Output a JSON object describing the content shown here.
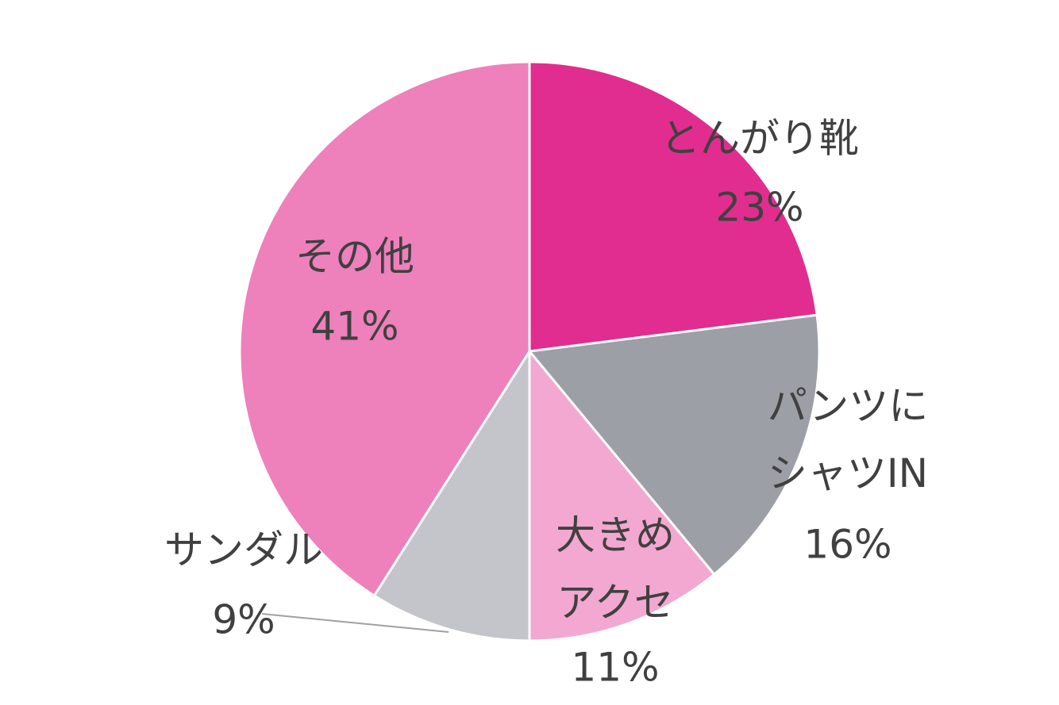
{
  "chart_data": {
    "type": "pie",
    "categories": [
      "とんがり靴",
      "パンツに\nシャツIN",
      "大きめ\nアクセ",
      "サンダル",
      "その他"
    ],
    "values": [
      23,
      16,
      11,
      9,
      41
    ],
    "value_labels": [
      "23%",
      "16%",
      "11%",
      "9%",
      "41%"
    ],
    "colors": [
      "#e12d8f",
      "#9c9fa6",
      "#f2a8d0",
      "#c4c5ca",
      "#ee80bc"
    ]
  }
}
